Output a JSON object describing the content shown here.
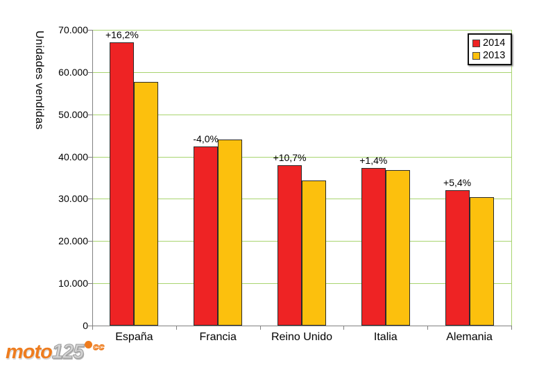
{
  "chart_data": {
    "type": "bar",
    "title": "",
    "xlabel": "",
    "ylabel": "Unidades vendidas",
    "categories": [
      "España",
      "Francia",
      "Reino Unido",
      "Italia",
      "Alemania"
    ],
    "series": [
      {
        "name": "2014",
        "color": "#ee2324",
        "values": [
          67000,
          42350,
          38000,
          37350,
          32050
        ]
      },
      {
        "name": "2013",
        "color": "#fcc00d",
        "values": [
          57700,
          44100,
          34300,
          36850,
          30400
        ]
      }
    ],
    "annotations": [
      "+16,2%",
      "-4,0%",
      "+10,7%",
      "+1,4%",
      "+5,4%"
    ],
    "ylim": [
      0,
      70000
    ],
    "ytick_interval": 10000,
    "ytick_labels": [
      "0",
      "10.000",
      "20.000",
      "30.000",
      "40.000",
      "50.000",
      "60.000",
      "70.000"
    ],
    "grid": true,
    "gridline_color": "#a8d46f",
    "axis_color": "#808080",
    "bar_border_color": "#2b2b2b",
    "legend_position": "top-right"
  },
  "legend": {
    "items": [
      {
        "label": "2014",
        "color": "#ee2324"
      },
      {
        "label": "2013",
        "color": "#fcc00d"
      }
    ]
  },
  "logo": {
    "part_moto": "moto",
    "part_125": "125",
    "part_cc": "cc",
    "orange": "#ee7c1e"
  }
}
